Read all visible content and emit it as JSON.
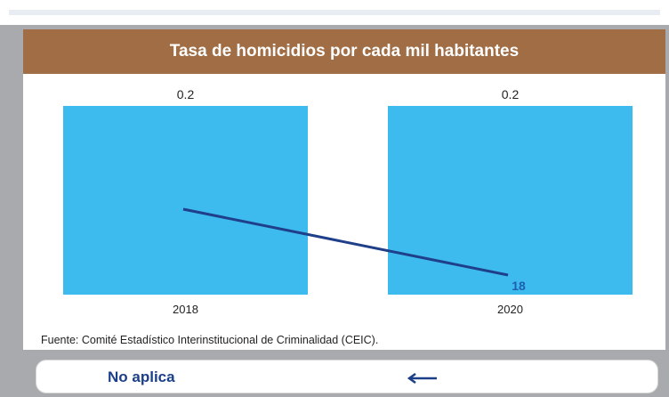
{
  "title": "Tasa de homicidios por cada mil habitantes",
  "source": "Fuente: Comité Estadístico Interinstitucional de Criminalidad (CEIC).",
  "footer": {
    "label": "No aplica",
    "arrow_icon": "left-arrow-icon"
  },
  "colors": {
    "header": "#a06d45",
    "bar": "#3dbbee",
    "line": "#1f3f8a",
    "label_blue": "#1d5fb0"
  },
  "chart_data": {
    "type": "bar",
    "categories": [
      "2018",
      "2020"
    ],
    "values": [
      0.2,
      0.2
    ],
    "value_labels": [
      "0.2",
      "0.2"
    ],
    "ylim": [
      0,
      0.2
    ],
    "line_series": {
      "values": [
        null,
        18
      ],
      "labels": [
        "",
        "18"
      ]
    },
    "title": "Tasa de homicidios por cada mil habitantes",
    "xlabel": "",
    "ylabel": "",
    "grid": false,
    "legend": "none"
  }
}
